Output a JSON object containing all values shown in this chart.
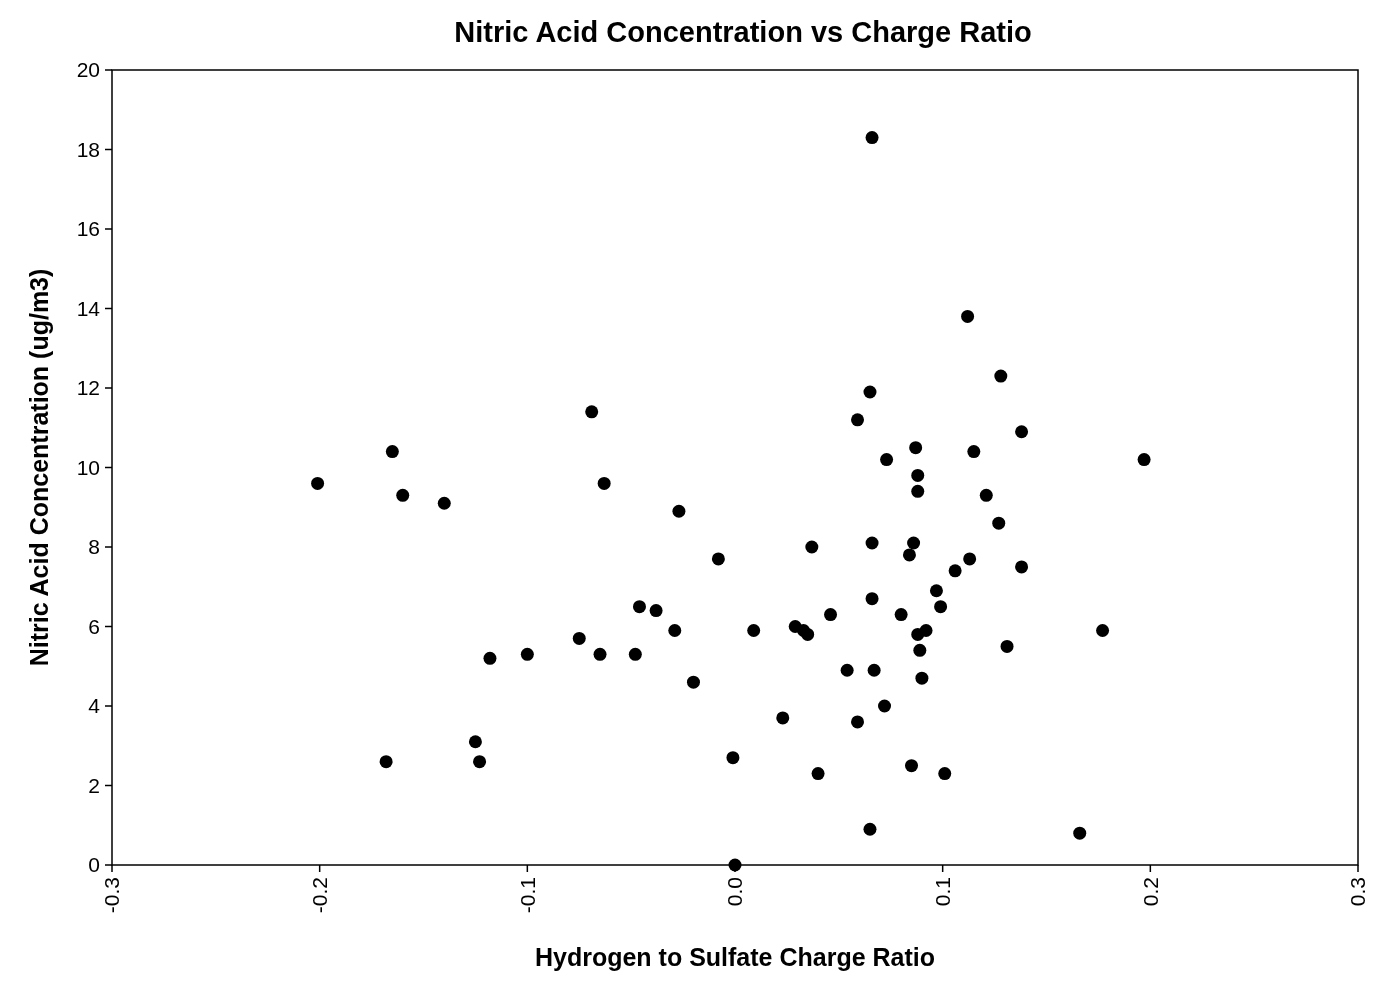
{
  "chart_data": {
    "type": "scatter",
    "title": "Nitric Acid Concentration vs Charge Ratio",
    "xlabel": "Hydrogen to Sulfate Charge Ratio",
    "ylabel": "Nitric Acid Concentration (ug/m3)",
    "xlim": [
      -0.3,
      0.3
    ],
    "xticks": [
      -0.3,
      -0.2,
      -0.1,
      {
        "value": 0,
        "label": "0.0"
      },
      0.1,
      0.2,
      0.3
    ],
    "ylim": [
      0,
      20
    ],
    "yticks": [
      0,
      2,
      4,
      6,
      8,
      10,
      12,
      14,
      16,
      18,
      20
    ],
    "grid": false,
    "marker": "circle",
    "series": [
      {
        "color": "#000000",
        "x": [
          -0.201,
          -0.165,
          -0.16,
          -0.14,
          -0.168,
          -0.125,
          -0.123,
          -0.118,
          -0.1,
          -0.075,
          -0.069,
          -0.063,
          -0.065,
          -0.048,
          -0.046,
          -0.038,
          -0.029,
          -0.027,
          -0.02,
          -0.008,
          -0.001,
          0.0,
          0.009,
          0.023,
          0.029,
          0.033,
          0.035,
          0.037,
          0.04,
          0.046,
          0.054,
          0.059,
          0.059,
          0.065,
          0.066,
          0.065,
          0.066,
          0.066,
          0.067,
          0.072,
          0.073,
          0.08,
          0.084,
          0.086,
          0.085,
          0.087,
          0.088,
          0.088,
          0.088,
          0.089,
          0.09,
          0.092,
          0.097,
          0.099,
          0.101,
          0.106,
          0.112,
          0.113,
          0.115,
          0.121,
          0.127,
          0.128,
          0.131,
          0.138,
          0.138,
          0.177,
          0.166,
          0.197
        ],
        "values": [
          9.6,
          10.4,
          9.3,
          9.1,
          2.6,
          3.1,
          2.6,
          5.2,
          5.3,
          5.7,
          11.4,
          9.6,
          5.3,
          5.3,
          6.5,
          6.4,
          5.9,
          8.9,
          4.6,
          7.7,
          2.7,
          0,
          5.9,
          3.7,
          6.0,
          5.9,
          5.8,
          8.0,
          2.3,
          6.3,
          4.9,
          11.2,
          3.6,
          11.9,
          18.3,
          0.9,
          8.1,
          6.7,
          4.9,
          4.0,
          10.2,
          6.3,
          7.8,
          8.1,
          2.5,
          10.5,
          9.8,
          9.4,
          5.8,
          5.4,
          4.7,
          5.9,
          6.9,
          6.5,
          2.3,
          7.4,
          13.8,
          7.7,
          10.4,
          9.3,
          8.6,
          12.3,
          5.5,
          10.9,
          7.5,
          5.9,
          0.8,
          10.2
        ]
      }
    ]
  }
}
